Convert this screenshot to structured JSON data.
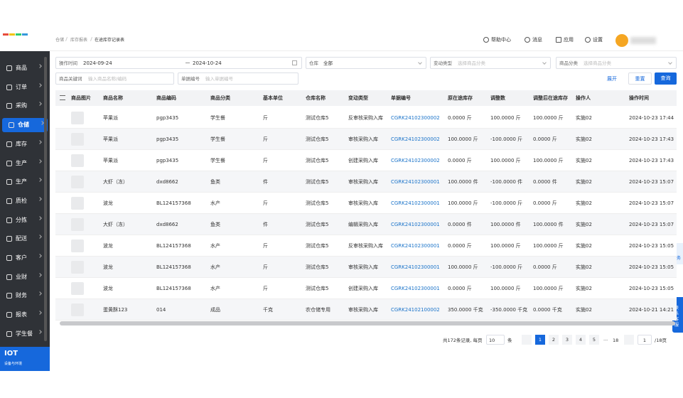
{
  "header": {
    "breadcrumb": [
      "仓储",
      "库存报表",
      "在途库存记录表"
    ],
    "actions": [
      "帮助中心",
      "消息",
      "应用",
      "设置"
    ]
  },
  "sidebar": {
    "items": [
      "商品",
      "订单",
      "采购",
      "仓储",
      "库存",
      "生产",
      "生产",
      "质检",
      "分拣",
      "配送",
      "客户",
      "业财",
      "财务",
      "报表",
      "学生餐"
    ],
    "active": 3,
    "footer_title": "IOT",
    "footer_subtitle": "设备与环境"
  },
  "filters": {
    "time_label": "操作时间",
    "start_date": "2024-09-24",
    "end_date": "2024-10-24",
    "warehouse_label": "仓库",
    "warehouse_value": "全部",
    "change_type_label": "变动类型",
    "change_type_placeholder": "选择商品分类",
    "category_label": "商品分类",
    "category_placeholder": "选择商品分类",
    "keyword_label": "商品关键词",
    "keyword_placeholder": "输入商品名称/编码",
    "doc_label": "单据编号",
    "doc_placeholder": "输入单据编号",
    "expand": "展开",
    "reset": "重置",
    "search": "查询"
  },
  "table": {
    "columns": [
      "商品图片",
      "商品名称",
      "商品编码",
      "商品分类",
      "基本单位",
      "仓库名称",
      "变动类型",
      "单据编号",
      "原在途库存",
      "调整数",
      "调整后在途库存",
      "操作人",
      "操作时间"
    ],
    "rows": [
      [
        "苹果派",
        "pgp3435",
        "学生餐",
        "斤",
        "测试仓库5",
        "反审核采购入库",
        "CGRK24102300002",
        "0.0000 斤",
        "100.0000 斤",
        "100.0000 斤",
        "实施02",
        "2024-10-23 17:44"
      ],
      [
        "苹果派",
        "pgp3435",
        "学生餐",
        "斤",
        "测试仓库5",
        "审核采购入库",
        "CGRK24102300002",
        "100.0000 斤",
        "-100.0000 斤",
        "0.0000 斤",
        "实施02",
        "2024-10-23 17:43"
      ],
      [
        "苹果派",
        "pgp3435",
        "学生餐",
        "斤",
        "测试仓库5",
        "创建采购入库",
        "CGRK24102300002",
        "0.0000 斤",
        "100.0000 斤",
        "100.0000 斤",
        "实施02",
        "2024-10-23 17:43"
      ],
      [
        "大虾（冻）",
        "dxd8662",
        "鱼类",
        "件",
        "测试仓库5",
        "审核采购入库",
        "CGRK24102300001",
        "100.0000 件",
        "-100.0000 件",
        "0.0000 件",
        "实施02",
        "2024-10-23 15:07"
      ],
      [
        "波龙",
        "BL124157368",
        "水产",
        "斤",
        "测试仓库5",
        "审核采购入库",
        "CGRK24102300001",
        "100.0000 斤",
        "-100.0000 斤",
        "0.0000 斤",
        "实施02",
        "2024-10-23 15:07"
      ],
      [
        "大虾（冻）",
        "dxd8662",
        "鱼类",
        "件",
        "测试仓库5",
        "编辑采购入库",
        "CGRK24102300001",
        "0.0000 件",
        "100.0000 件",
        "100.0000 件",
        "实施02",
        "2024-10-23 15:07"
      ],
      [
        "波龙",
        "BL124157368",
        "水产",
        "斤",
        "测试仓库5",
        "反审核采购入库",
        "CGRK24102300001",
        "0.0000 斤",
        "100.0000 斤",
        "100.0000 斤",
        "实施02",
        "2024-10-23 15:05"
      ],
      [
        "波龙",
        "BL124157368",
        "水产",
        "斤",
        "测试仓库5",
        "审核采购入库",
        "CGRK24102300001",
        "100.0000 斤",
        "-100.0000 斤",
        "0.0000 斤",
        "实施02",
        "2024-10-23 15:05"
      ],
      [
        "波龙",
        "BL124157368",
        "水产",
        "斤",
        "测试仓库5",
        "创建采购入库",
        "CGRK24102300001",
        "0.0000 斤",
        "100.0000 斤",
        "100.0000 斤",
        "实施02",
        "2024-10-23 15:05"
      ],
      [
        "蛋黄酥123",
        "014",
        "成品",
        "千克",
        "农仓储专用",
        "审核采购入库",
        "CGRK24102100002",
        "350.0000 千克",
        "-350.0000 千克",
        "0.0000 千克",
        "实施02",
        "2024-10-21 14:21"
      ]
    ]
  },
  "pagination": {
    "summary": "共172条记录, 每页",
    "page_size": "10",
    "unit": "条",
    "pages": [
      "1",
      "2",
      "3",
      "4",
      "5"
    ],
    "ellipsis": "···",
    "last_page": "18",
    "current_input": "1",
    "total_pages": "/18页"
  },
  "float_buttons": {
    "task": "任务",
    "service": "联系客服"
  }
}
